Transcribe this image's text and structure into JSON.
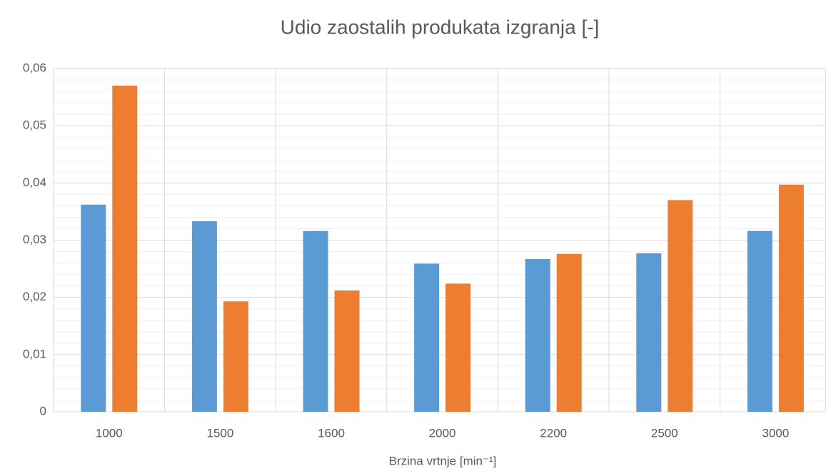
{
  "chart_data": {
    "type": "bar",
    "title": "Udio zaostalih produkata izgranja [-]",
    "x_label": "Brzina vrtnje [min⁻¹]",
    "categories": [
      "1000",
      "1500",
      "1600",
      "2000",
      "2200",
      "2500",
      "3000"
    ],
    "series": [
      {
        "color": "#5b9bd5",
        "values": [
          0.0362,
          0.0333,
          0.0316,
          0.0259,
          0.0267,
          0.0277,
          0.0316
        ]
      },
      {
        "color": "#ed7d31",
        "values": [
          0.057,
          0.0193,
          0.0212,
          0.0224,
          0.0276,
          0.037,
          0.0397
        ]
      }
    ],
    "ylim": [
      0,
      0.06
    ],
    "yticks": [
      0,
      {
        "value": 0.01,
        "label": "0,01"
      },
      {
        "value": 0.02,
        "label": "0,02"
      },
      {
        "value": 0.03,
        "label": "0,03"
      },
      {
        "value": 0.04,
        "label": "0,04"
      },
      {
        "value": 0.05,
        "label": "0,05"
      },
      {
        "value": 0.06,
        "label": "0,06"
      }
    ],
    "yticks_minor": [
      0.002,
      0.004,
      0.006,
      0.008,
      0.012,
      0.014,
      0.016,
      0.018,
      0.022,
      0.024,
      0.026,
      0.028,
      0.032,
      0.034,
      0.036,
      0.038,
      0.042,
      0.044,
      0.046,
      0.048,
      0.052,
      0.054,
      0.056,
      0.058
    ],
    "grid": true
  }
}
